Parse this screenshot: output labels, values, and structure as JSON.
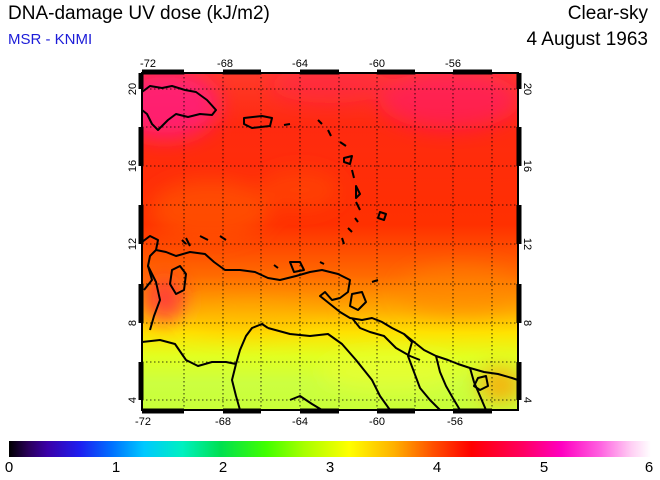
{
  "header": {
    "title": "DNA-damage UV dose (kJ/m2)",
    "credit": "MSR - KNMI",
    "sky_condition": "Clear-sky",
    "date": "4 August 1963"
  },
  "map": {
    "region": "Caribbean / northern South America",
    "lon_range": [
      -72,
      -52
    ],
    "lat_range": [
      3.5,
      20.5
    ],
    "lon_ticks": [
      "-72",
      "-68",
      "-64",
      "-60",
      "-56"
    ],
    "lat_ticks": [
      "4",
      "8",
      "12",
      "16",
      "20"
    ],
    "grid": "dotted, every 2 degrees",
    "colors": {
      "low": "#c8ff30",
      "mid": "#ffe000",
      "high": "#ff2000",
      "peak": "#ff1a8c"
    }
  },
  "colorbar": {
    "labels": [
      "0",
      "1",
      "2",
      "3",
      "4",
      "5",
      "6"
    ],
    "range": [
      0,
      6
    ]
  }
}
